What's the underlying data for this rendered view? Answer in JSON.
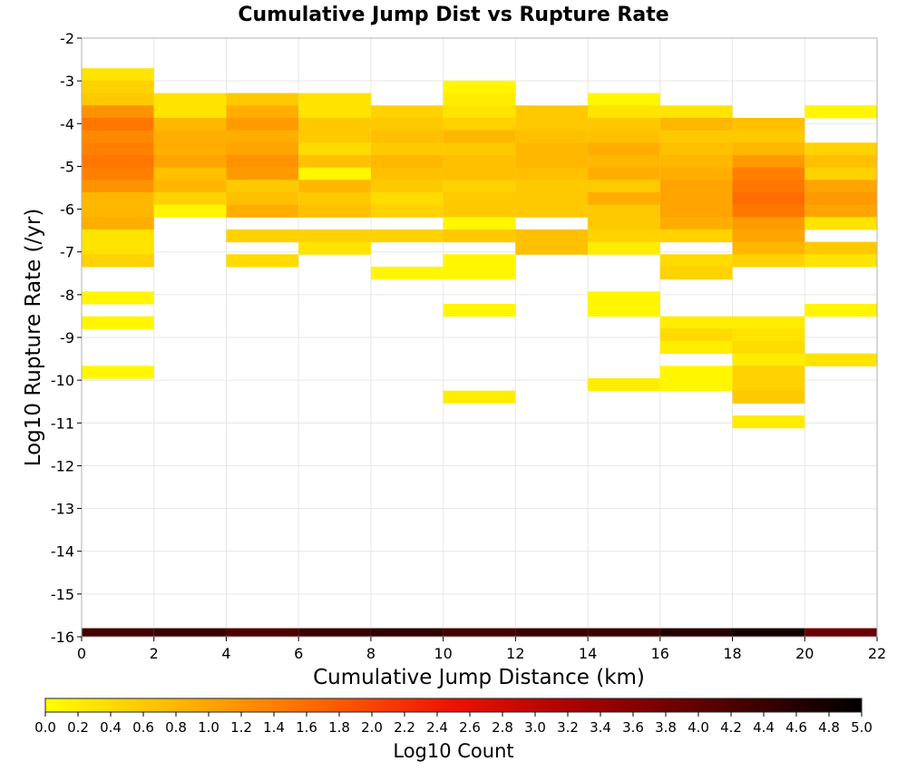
{
  "chart_data": {
    "type": "heatmap",
    "title": "Cumulative Jump Dist vs Rupture Rate",
    "xlabel": "Cumulative Jump Distance (km)",
    "ylabel": "Log10 Rupture Rate (/yr)",
    "xlim": [
      0,
      22
    ],
    "ylim": [
      -16,
      -2
    ],
    "x_ticks": [
      "0",
      "2",
      "4",
      "6",
      "8",
      "10",
      "12",
      "14",
      "16",
      "18",
      "20",
      "22"
    ],
    "y_ticks": [
      "-2",
      "-3",
      "-4",
      "-5",
      "-6",
      "-7",
      "-8",
      "-9",
      "-10",
      "-11",
      "-12",
      "-13",
      "-14",
      "-15",
      "-16"
    ],
    "x_bin_width": 2,
    "y_bin_height": 0.29,
    "grid": true,
    "colorbar": {
      "label": "Log10 Count",
      "range": [
        0.0,
        5.0
      ],
      "ticks": [
        "0.0",
        "0.2",
        "0.4",
        "0.6",
        "0.8",
        "1.0",
        "1.2",
        "1.4",
        "1.6",
        "1.8",
        "2.0",
        "2.2",
        "2.4",
        "2.6",
        "2.8",
        "3.0",
        "3.2",
        "3.4",
        "3.6",
        "3.8",
        "4.0",
        "4.2",
        "4.4",
        "4.6",
        "4.8",
        "5.0"
      ],
      "colors": [
        "#ffff00",
        "#ffb400",
        "#ff6600",
        "#ee1100",
        "#a00000",
        "#500000",
        "#000000"
      ],
      "placement": "bottom"
    },
    "columns": [
      {
        "x": 1,
        "cells": [
          [
            -2.85,
            0.3
          ],
          [
            -3.14,
            0.5
          ],
          [
            -3.43,
            0.6
          ],
          [
            -3.72,
            1.2
          ],
          [
            -4.01,
            1.5
          ],
          [
            -4.3,
            1.3
          ],
          [
            -4.59,
            1.4
          ],
          [
            -4.88,
            1.5
          ],
          [
            -5.17,
            1.4
          ],
          [
            -5.46,
            1.2
          ],
          [
            -5.75,
            0.8
          ],
          [
            -6.04,
            0.8
          ],
          [
            -6.33,
            0.9
          ],
          [
            -6.62,
            0.3
          ],
          [
            -6.91,
            0.3
          ],
          [
            -7.2,
            0.5
          ],
          [
            -8.07,
            0.1
          ],
          [
            -8.65,
            0.1
          ],
          [
            -9.81,
            0.1
          ]
        ]
      },
      {
        "x": 3,
        "cells": [
          [
            -3.43,
            0.3
          ],
          [
            -3.72,
            0.3
          ],
          [
            -4.01,
            0.8
          ],
          [
            -4.3,
            0.9
          ],
          [
            -4.59,
            0.9
          ],
          [
            -4.88,
            1.0
          ],
          [
            -5.17,
            0.7
          ],
          [
            -5.46,
            0.8
          ],
          [
            -5.75,
            0.5
          ],
          [
            -6.04,
            0.1
          ]
        ]
      },
      {
        "x": 5,
        "cells": [
          [
            -3.43,
            0.6
          ],
          [
            -3.72,
            0.9
          ],
          [
            -4.01,
            1.1
          ],
          [
            -4.3,
            0.9
          ],
          [
            -4.59,
            1.0
          ],
          [
            -4.88,
            1.2
          ],
          [
            -5.17,
            1.1
          ],
          [
            -5.46,
            0.6
          ],
          [
            -5.75,
            0.7
          ],
          [
            -6.04,
            0.9
          ],
          [
            -6.62,
            0.5
          ],
          [
            -7.2,
            0.4
          ]
        ]
      },
      {
        "x": 7,
        "cells": [
          [
            -3.43,
            0.3
          ],
          [
            -3.72,
            0.3
          ],
          [
            -4.01,
            0.6
          ],
          [
            -4.3,
            0.6
          ],
          [
            -4.59,
            0.4
          ],
          [
            -4.88,
            0.7
          ],
          [
            -5.17,
            0.1
          ],
          [
            -5.46,
            0.8
          ],
          [
            -5.75,
            0.6
          ],
          [
            -6.04,
            0.7
          ],
          [
            -6.62,
            0.5
          ],
          [
            -6.91,
            0.3
          ]
        ]
      },
      {
        "x": 9,
        "cells": [
          [
            -3.72,
            0.5
          ],
          [
            -4.01,
            0.6
          ],
          [
            -4.3,
            0.7
          ],
          [
            -4.59,
            0.6
          ],
          [
            -4.88,
            0.8
          ],
          [
            -5.17,
            0.7
          ],
          [
            -5.46,
            0.6
          ],
          [
            -5.75,
            0.4
          ],
          [
            -6.04,
            0.5
          ],
          [
            -6.62,
            0.5
          ],
          [
            -7.49,
            0.1
          ]
        ]
      },
      {
        "x": 11,
        "cells": [
          [
            -3.14,
            0.1
          ],
          [
            -3.43,
            0.2
          ],
          [
            -3.72,
            0.3
          ],
          [
            -4.01,
            0.5
          ],
          [
            -4.3,
            0.8
          ],
          [
            -4.59,
            0.6
          ],
          [
            -4.88,
            0.7
          ],
          [
            -5.17,
            0.7
          ],
          [
            -5.46,
            0.5
          ],
          [
            -5.75,
            0.6
          ],
          [
            -6.04,
            0.6
          ],
          [
            -6.33,
            0.1
          ],
          [
            -6.62,
            0.6
          ],
          [
            -7.2,
            0.1
          ],
          [
            -7.49,
            0.1
          ],
          [
            -8.36,
            0.1
          ],
          [
            -10.39,
            0.2
          ]
        ]
      },
      {
        "x": 13,
        "cells": [
          [
            -3.72,
            0.6
          ],
          [
            -4.01,
            0.6
          ],
          [
            -4.3,
            0.7
          ],
          [
            -4.59,
            0.8
          ],
          [
            -4.88,
            0.8
          ],
          [
            -5.17,
            0.7
          ],
          [
            -5.46,
            0.6
          ],
          [
            -5.75,
            0.6
          ],
          [
            -6.04,
            0.6
          ],
          [
            -6.62,
            0.7
          ],
          [
            -6.91,
            0.7
          ]
        ]
      },
      {
        "x": 15,
        "cells": [
          [
            -3.43,
            0.1
          ],
          [
            -3.72,
            0.3
          ],
          [
            -4.01,
            0.6
          ],
          [
            -4.3,
            0.7
          ],
          [
            -4.59,
            0.9
          ],
          [
            -4.88,
            0.8
          ],
          [
            -5.17,
            0.9
          ],
          [
            -5.46,
            0.6
          ],
          [
            -5.75,
            0.9
          ],
          [
            -6.04,
            0.6
          ],
          [
            -6.33,
            0.6
          ],
          [
            -6.62,
            0.5
          ],
          [
            -6.91,
            0.2
          ],
          [
            -8.07,
            0.1
          ],
          [
            -8.36,
            0.1
          ],
          [
            -10.1,
            0.2
          ]
        ]
      },
      {
        "x": 17,
        "cells": [
          [
            -3.72,
            0.3
          ],
          [
            -4.01,
            0.8
          ],
          [
            -4.3,
            0.6
          ],
          [
            -4.59,
            0.7
          ],
          [
            -4.88,
            0.8
          ],
          [
            -5.17,
            0.9
          ],
          [
            -5.46,
            1.0
          ],
          [
            -5.75,
            1.0
          ],
          [
            -6.04,
            1.0
          ],
          [
            -6.33,
            0.9
          ],
          [
            -6.62,
            0.5
          ],
          [
            -7.2,
            0.4
          ],
          [
            -7.49,
            0.5
          ],
          [
            -8.65,
            0.2
          ],
          [
            -8.94,
            0.4
          ],
          [
            -9.23,
            0.2
          ],
          [
            -9.81,
            0.1
          ],
          [
            -10.1,
            0.1
          ]
        ]
      },
      {
        "x": 19,
        "cells": [
          [
            -4.01,
            0.7
          ],
          [
            -4.3,
            0.6
          ],
          [
            -4.59,
            0.8
          ],
          [
            -4.88,
            1.1
          ],
          [
            -5.17,
            1.4
          ],
          [
            -5.46,
            1.5
          ],
          [
            -5.75,
            1.6
          ],
          [
            -6.04,
            1.5
          ],
          [
            -6.33,
            1.1
          ],
          [
            -6.62,
            1.0
          ],
          [
            -6.91,
            0.8
          ],
          [
            -7.2,
            0.5
          ],
          [
            -8.65,
            0.2
          ],
          [
            -8.94,
            0.3
          ],
          [
            -9.23,
            0.4
          ],
          [
            -9.52,
            0.2
          ],
          [
            -9.81,
            0.5
          ],
          [
            -10.1,
            0.5
          ],
          [
            -10.39,
            0.6
          ],
          [
            -10.97,
            0.2
          ]
        ]
      },
      {
        "x": 21,
        "cells": [
          [
            -3.72,
            0.1
          ],
          [
            -4.59,
            0.5
          ],
          [
            -4.88,
            0.7
          ],
          [
            -5.17,
            0.5
          ],
          [
            -5.46,
            1.0
          ],
          [
            -5.75,
            1.1
          ],
          [
            -6.04,
            1.0
          ],
          [
            -6.33,
            0.3
          ],
          [
            -6.91,
            0.6
          ],
          [
            -7.2,
            0.3
          ],
          [
            -8.36,
            0.1
          ],
          [
            -9.52,
            0.3
          ]
        ]
      }
    ],
    "bottom_row": {
      "y": -15.9,
      "values": [
        4.3,
        4.4,
        4.2,
        4.4,
        4.5,
        4.3,
        4.4,
        4.4,
        4.6,
        4.8,
        3.9
      ]
    }
  }
}
